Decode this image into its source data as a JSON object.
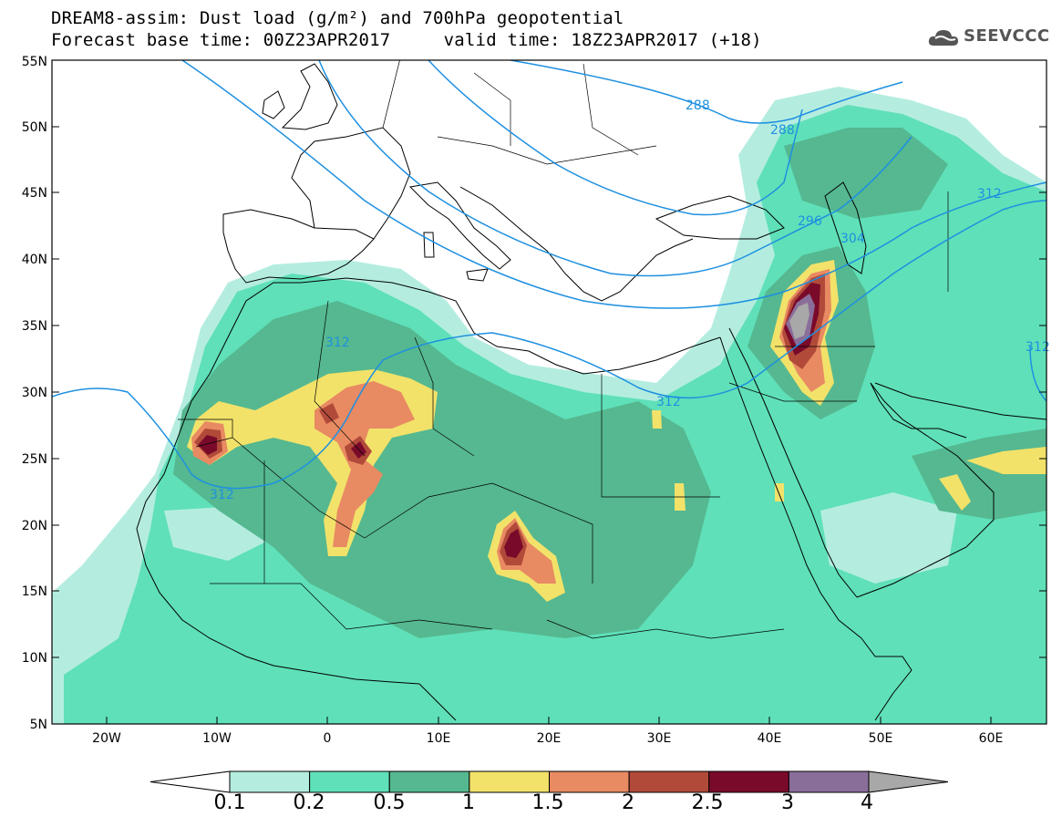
{
  "header": {
    "title_line1": "DREAM8-assim: Dust load (g/m²) and 700hPa geopotential",
    "title_line2": "Forecast base time: 00Z23APR2017     valid time: 18Z23APR2017 (+18)"
  },
  "logo": {
    "text": "SEEVCCC",
    "icon": "cloud-icon"
  },
  "map": {
    "lat_labels": [
      "55N",
      "50N",
      "45N",
      "40N",
      "35N",
      "30N",
      "25N",
      "20N",
      "15N",
      "10N",
      "5N"
    ],
    "lon_labels": [
      "20W",
      "10W",
      "0",
      "10E",
      "20E",
      "30E",
      "40E",
      "50E",
      "60E"
    ],
    "contour_labels": [
      "288",
      "288",
      "296",
      "304",
      "312",
      "312",
      "312",
      "312",
      "312"
    ],
    "extent": {
      "lon": [
        -25,
        65
      ],
      "lat": [
        5,
        55
      ]
    }
  },
  "colorbar": {
    "labels": [
      "0.1",
      "0.2",
      "0.5",
      "1",
      "1.5",
      "2",
      "2.5",
      "3",
      "4"
    ],
    "colors": [
      "#ffffff",
      "#b4ede0",
      "#5fe0b8",
      "#55b890",
      "#f2e26a",
      "#e88a62",
      "#b24a3a",
      "#7a0a2a",
      "#8a6e9a",
      "#a8a8a8"
    ]
  },
  "colors": {
    "coast": "#000000",
    "contour": "#1e90e0"
  }
}
